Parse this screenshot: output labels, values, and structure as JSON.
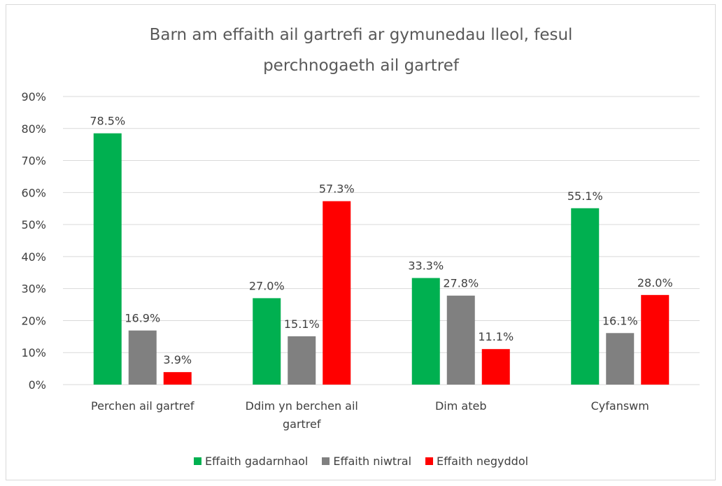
{
  "chart_data": {
    "type": "bar",
    "title": "Barn am effaith ail gartrefi ar gymunedau lleol, fesul perchnogaeth ail gartref",
    "categories": [
      "Perchen ail gartref",
      "Ddim yn berchen ail gartref",
      "Dim ateb",
      "Cyfanswm"
    ],
    "series": [
      {
        "name": "Effaith gadarnhaol",
        "color": "#00b050",
        "values": [
          78.5,
          27.0,
          33.3,
          55.1
        ],
        "value_labels": [
          "78.5%",
          "27.0%",
          "33.3%",
          "55.1%"
        ]
      },
      {
        "name": "Effaith niwtral",
        "color": "#808080",
        "values": [
          16.9,
          15.1,
          27.8,
          16.1
        ],
        "value_labels": [
          "16.9%",
          "15.1%",
          "27.8%",
          "16.1%"
        ]
      },
      {
        "name": "Effaith negyddol",
        "color": "#ff0000",
        "values": [
          3.9,
          57.3,
          11.1,
          28.0
        ],
        "value_labels": [
          "3.9%",
          "57.3%",
          "11.1%",
          "28.0%"
        ]
      }
    ],
    "ylim": [
      0,
      90
    ],
    "yticks": [
      {
        "value": 0,
        "label": "0%"
      },
      {
        "value": 10,
        "label": "10%"
      },
      {
        "value": 20,
        "label": "20%"
      },
      {
        "value": 30,
        "label": "30%"
      },
      {
        "value": 40,
        "label": "40%"
      },
      {
        "value": 50,
        "label": "50%"
      },
      {
        "value": 60,
        "label": "60%"
      },
      {
        "value": 70,
        "label": "70%"
      },
      {
        "value": 80,
        "label": "80%"
      },
      {
        "value": 90,
        "label": "90%"
      }
    ],
    "grid": true,
    "legend": "bottom"
  }
}
